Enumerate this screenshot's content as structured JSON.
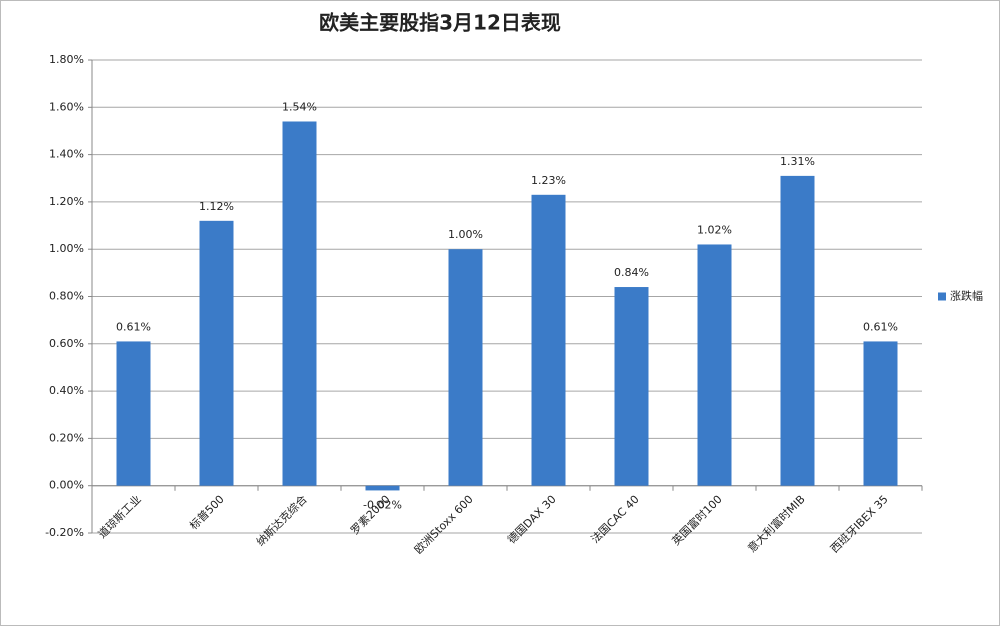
{
  "chart_data": {
    "type": "bar",
    "title": "欧美主要股指3月12日表现",
    "categories": [
      "道琼斯工业",
      "标普500",
      "纳斯达克综合",
      "罗素2000",
      "欧洲Stoxx 600",
      "德国DAX 30",
      "法国CAC 40",
      "英国富时100",
      "意大利富时MIB",
      "西班牙IBEX 35"
    ],
    "series": [
      {
        "name": "涨跌幅",
        "color": "#3b7bc8",
        "values": [
          0.61,
          1.12,
          1.54,
          -0.02,
          1.0,
          1.23,
          0.84,
          1.02,
          1.31,
          0.61
        ],
        "value_labels": [
          "0.61%",
          "1.12%",
          "1.54%",
          "-0.02%",
          "1.00%",
          "1.23%",
          "0.84%",
          "1.02%",
          "1.31%",
          "0.61%"
        ]
      }
    ],
    "ylim": [
      -0.2,
      1.8
    ],
    "yticks": [
      {
        "value": -0.2,
        "label": "-0.20%"
      },
      {
        "value": 0,
        "label": "0.00%"
      },
      {
        "value": 0.2,
        "label": "0.20%"
      },
      {
        "value": 0.4,
        "label": "0.40%"
      },
      {
        "value": 0.6,
        "label": "0.60%"
      },
      {
        "value": 0.8,
        "label": "0.80%"
      },
      {
        "value": 1.0,
        "label": "1.00%"
      },
      {
        "value": 1.2,
        "label": "1.20%"
      },
      {
        "value": 1.4,
        "label": "1.40%"
      },
      {
        "value": 1.6,
        "label": "1.60%"
      },
      {
        "value": 1.8,
        "label": "1.80%"
      }
    ],
    "grid": true,
    "legend": "right"
  }
}
